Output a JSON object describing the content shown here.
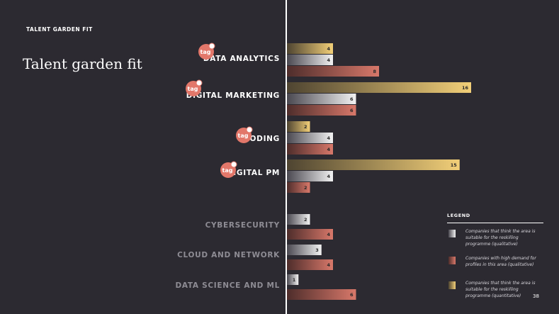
{
  "header": {
    "section_label": "TALENT GARDEN FIT",
    "title": "Talent garden fit"
  },
  "page_number": "38",
  "badge_text": "tag",
  "colors": {
    "background": "#2c2a31",
    "qualitative_fit": [
      "#4a4850",
      "#f2f2f2"
    ],
    "high_demand": [
      "#4e2d2b",
      "#d8786a"
    ],
    "quantitative_fit": [
      "#4e4431",
      "#f2cf78"
    ],
    "badge": "#e2776a"
  },
  "legend": {
    "title": "LEGEND",
    "items": [
      {
        "label": "Companies that think the area is suitable for the reskilling programme (qualitative)",
        "color_key": "qualitative_fit"
      },
      {
        "label": "Companies with high demand for profiles in this area (qualitative)",
        "color_key": "high_demand"
      },
      {
        "label": "Companies that think the area is suitable for the reskilling programme (quantitative)",
        "color_key": "quantitative_fit"
      }
    ]
  },
  "chart_data": {
    "type": "bar",
    "orientation": "horizontal",
    "categories": [
      "DATA ANALYTICS",
      "DIGITAL MARKETING",
      "CODING",
      "DIGITAL PM",
      "CYBERSECURITY",
      "CLOUD AND NETWORK",
      "DATA SCIENCE AND ML"
    ],
    "highlighted": [
      true,
      true,
      true,
      true,
      false,
      false,
      false
    ],
    "series": [
      {
        "color_key": "quantitative_fit",
        "values": [
          4,
          16,
          2,
          15,
          null,
          null,
          null
        ]
      },
      {
        "color_key": "qualitative_fit",
        "values": [
          4,
          6,
          4,
          4,
          2,
          3,
          1
        ]
      },
      {
        "color_key": "high_demand",
        "values": [
          8,
          6,
          4,
          2,
          4,
          4,
          6
        ]
      }
    ],
    "xlim": [
      0,
      16
    ],
    "grid": false,
    "legend_position": "bottom-right"
  }
}
